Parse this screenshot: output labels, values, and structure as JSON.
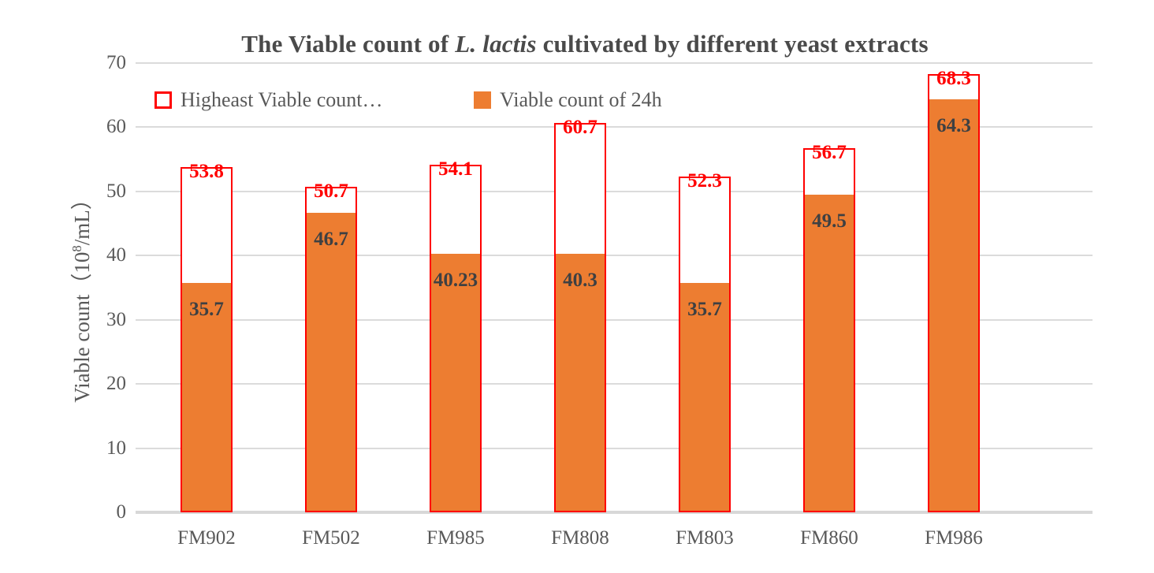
{
  "title": {
    "prefix": "The Viable count of ",
    "italic": "L. lactis",
    "suffix": " cultivated by different yeast extracts"
  },
  "y_axis": {
    "title_prefix": "Viable count（10",
    "title_sup": "8",
    "title_suffix": "/mL）",
    "ticks": [
      0,
      10,
      20,
      30,
      40,
      50,
      60,
      70
    ]
  },
  "legend": [
    {
      "label": "Higheast Viable count…",
      "swatch": "open-red"
    },
    {
      "label": "Viable count of 24h",
      "swatch": "solid-orange"
    }
  ],
  "colors": {
    "orange": "#ED7D31",
    "red": "#FF0000",
    "title_text": "#4A4A4A",
    "axis_text": "#595959",
    "dark_label": "#3E4042",
    "gridline": "#DBDBDB",
    "axis_line": "#D8D8D8"
  },
  "chart_data": {
    "type": "bar",
    "title": "The Viable count of L. lactis cultivated by different yeast extracts",
    "xlabel": "",
    "ylabel": "Viable count（10⁸/mL）",
    "ylim": [
      0,
      70
    ],
    "grid": true,
    "legend_position": "top-left-inside",
    "categories": [
      "FM902",
      "FM502",
      "FM985",
      "FM808",
      "FM803",
      "FM860",
      "FM986"
    ],
    "series": [
      {
        "name": "Higheast Viable count…",
        "style": "outline-red",
        "label_color": "#FF0000",
        "values": [
          53.8,
          50.7,
          54.1,
          60.7,
          52.3,
          56.7,
          68.3
        ]
      },
      {
        "name": "Viable count of 24h",
        "style": "fill-orange",
        "label_color": "#3E4042",
        "values": [
          35.7,
          46.7,
          40.23,
          40.3,
          35.7,
          49.5,
          64.3
        ]
      }
    ]
  }
}
